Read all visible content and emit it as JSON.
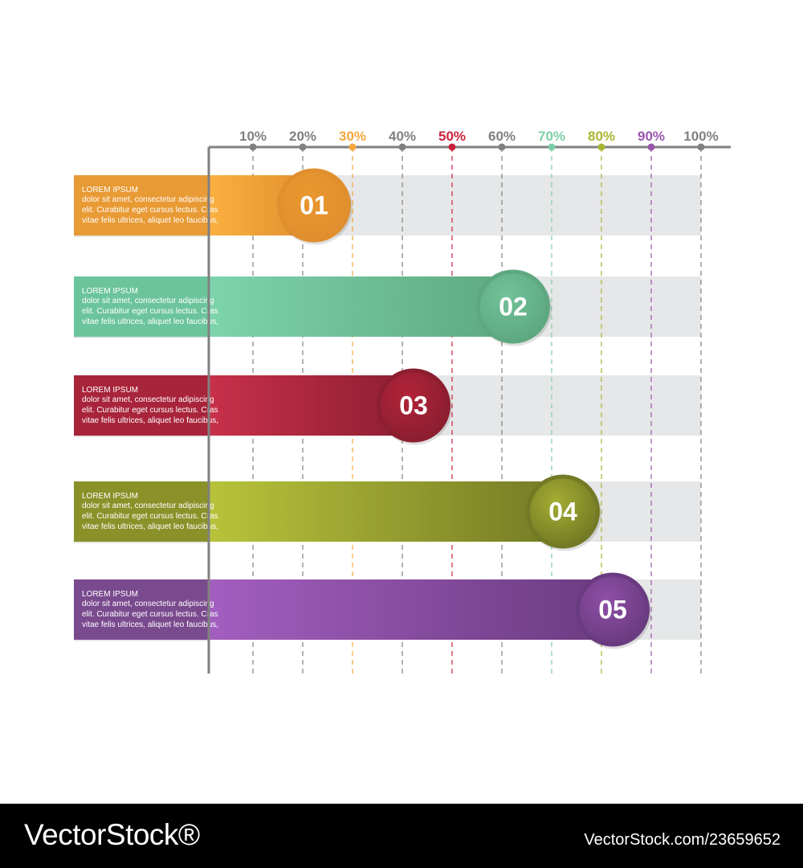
{
  "chart_data": {
    "type": "bar",
    "orientation": "horizontal",
    "axis": {
      "ticks": [
        "10%",
        "20%",
        "30%",
        "40%",
        "50%",
        "60%",
        "70%",
        "80%",
        "90%",
        "100%"
      ],
      "tick_values": [
        10,
        20,
        30,
        40,
        50,
        60,
        70,
        80,
        90,
        100
      ],
      "tick_colors": [
        "#808080",
        "#808080",
        "#f4a63c",
        "#808080",
        "#c7223c",
        "#808080",
        "#7ccfa6",
        "#a9b531",
        "#9a56ad",
        "#808080"
      ],
      "xlim": [
        0,
        100
      ],
      "grid": true
    },
    "categories": [
      "01",
      "02",
      "03",
      "04",
      "05"
    ],
    "values": [
      30,
      70,
      50,
      80,
      90
    ],
    "colors": [
      {
        "light": "#fbb040",
        "dark": "#e08f2e",
        "panel": "#e89a34",
        "circle": "#e9972f"
      },
      {
        "light": "#7dd4ac",
        "dark": "#5ea880",
        "panel": "#6cc49c",
        "circle": "#72c29a"
      },
      {
        "light": "#c8304a",
        "dark": "#8c1e30",
        "panel": "#a8243b",
        "circle": "#b22338"
      },
      {
        "light": "#b8c33a",
        "dark": "#737a25",
        "panel": "#8a9129",
        "circle": "#a4ad32"
      },
      {
        "light": "#a35ebf",
        "dark": "#6a3b80",
        "panel": "#7a4a8e",
        "circle": "#8e4fa6"
      }
    ],
    "descriptions": [
      {
        "title": "LOREM IPSUM",
        "lines": [
          "dolor sit amet, consectetur adipiscing",
          "elit. Curabitur eget cursus lectus. Cras",
          "vitae felis ultrices, aliquet leo faucibus,"
        ]
      },
      {
        "title": "LOREM IPSUM",
        "lines": [
          "dolor sit amet, consectetur adipiscing",
          "elit. Curabitur eget cursus lectus. Cras",
          "vitae felis ultrices, aliquet leo faucibus,"
        ]
      },
      {
        "title": "LOREM IPSUM",
        "lines": [
          "dolor sit amet, consectetur adipiscing",
          "elit. Curabitur eget cursus lectus. Cras",
          "vitae felis ultrices, aliquet leo faucibus,"
        ]
      },
      {
        "title": "LOREM IPSUM",
        "lines": [
          "dolor sit amet, consectetur adipiscing",
          "elit. Curabitur eget cursus lectus. Cras",
          "vitae felis ultrices, aliquet leo faucibus,"
        ]
      },
      {
        "title": "LOREM IPSUM",
        "lines": [
          "dolor sit amet, consectetur adipiscing",
          "elit. Curabitur eget cursus lectus. Cras",
          "vitae felis ultrices, aliquet leo faucibus,"
        ]
      }
    ],
    "track_color": "#e6e7e8",
    "axis_color": "#808080"
  },
  "footer": {
    "logo": "VectorStock®",
    "image_id": "VectorStock.com/23659652"
  }
}
